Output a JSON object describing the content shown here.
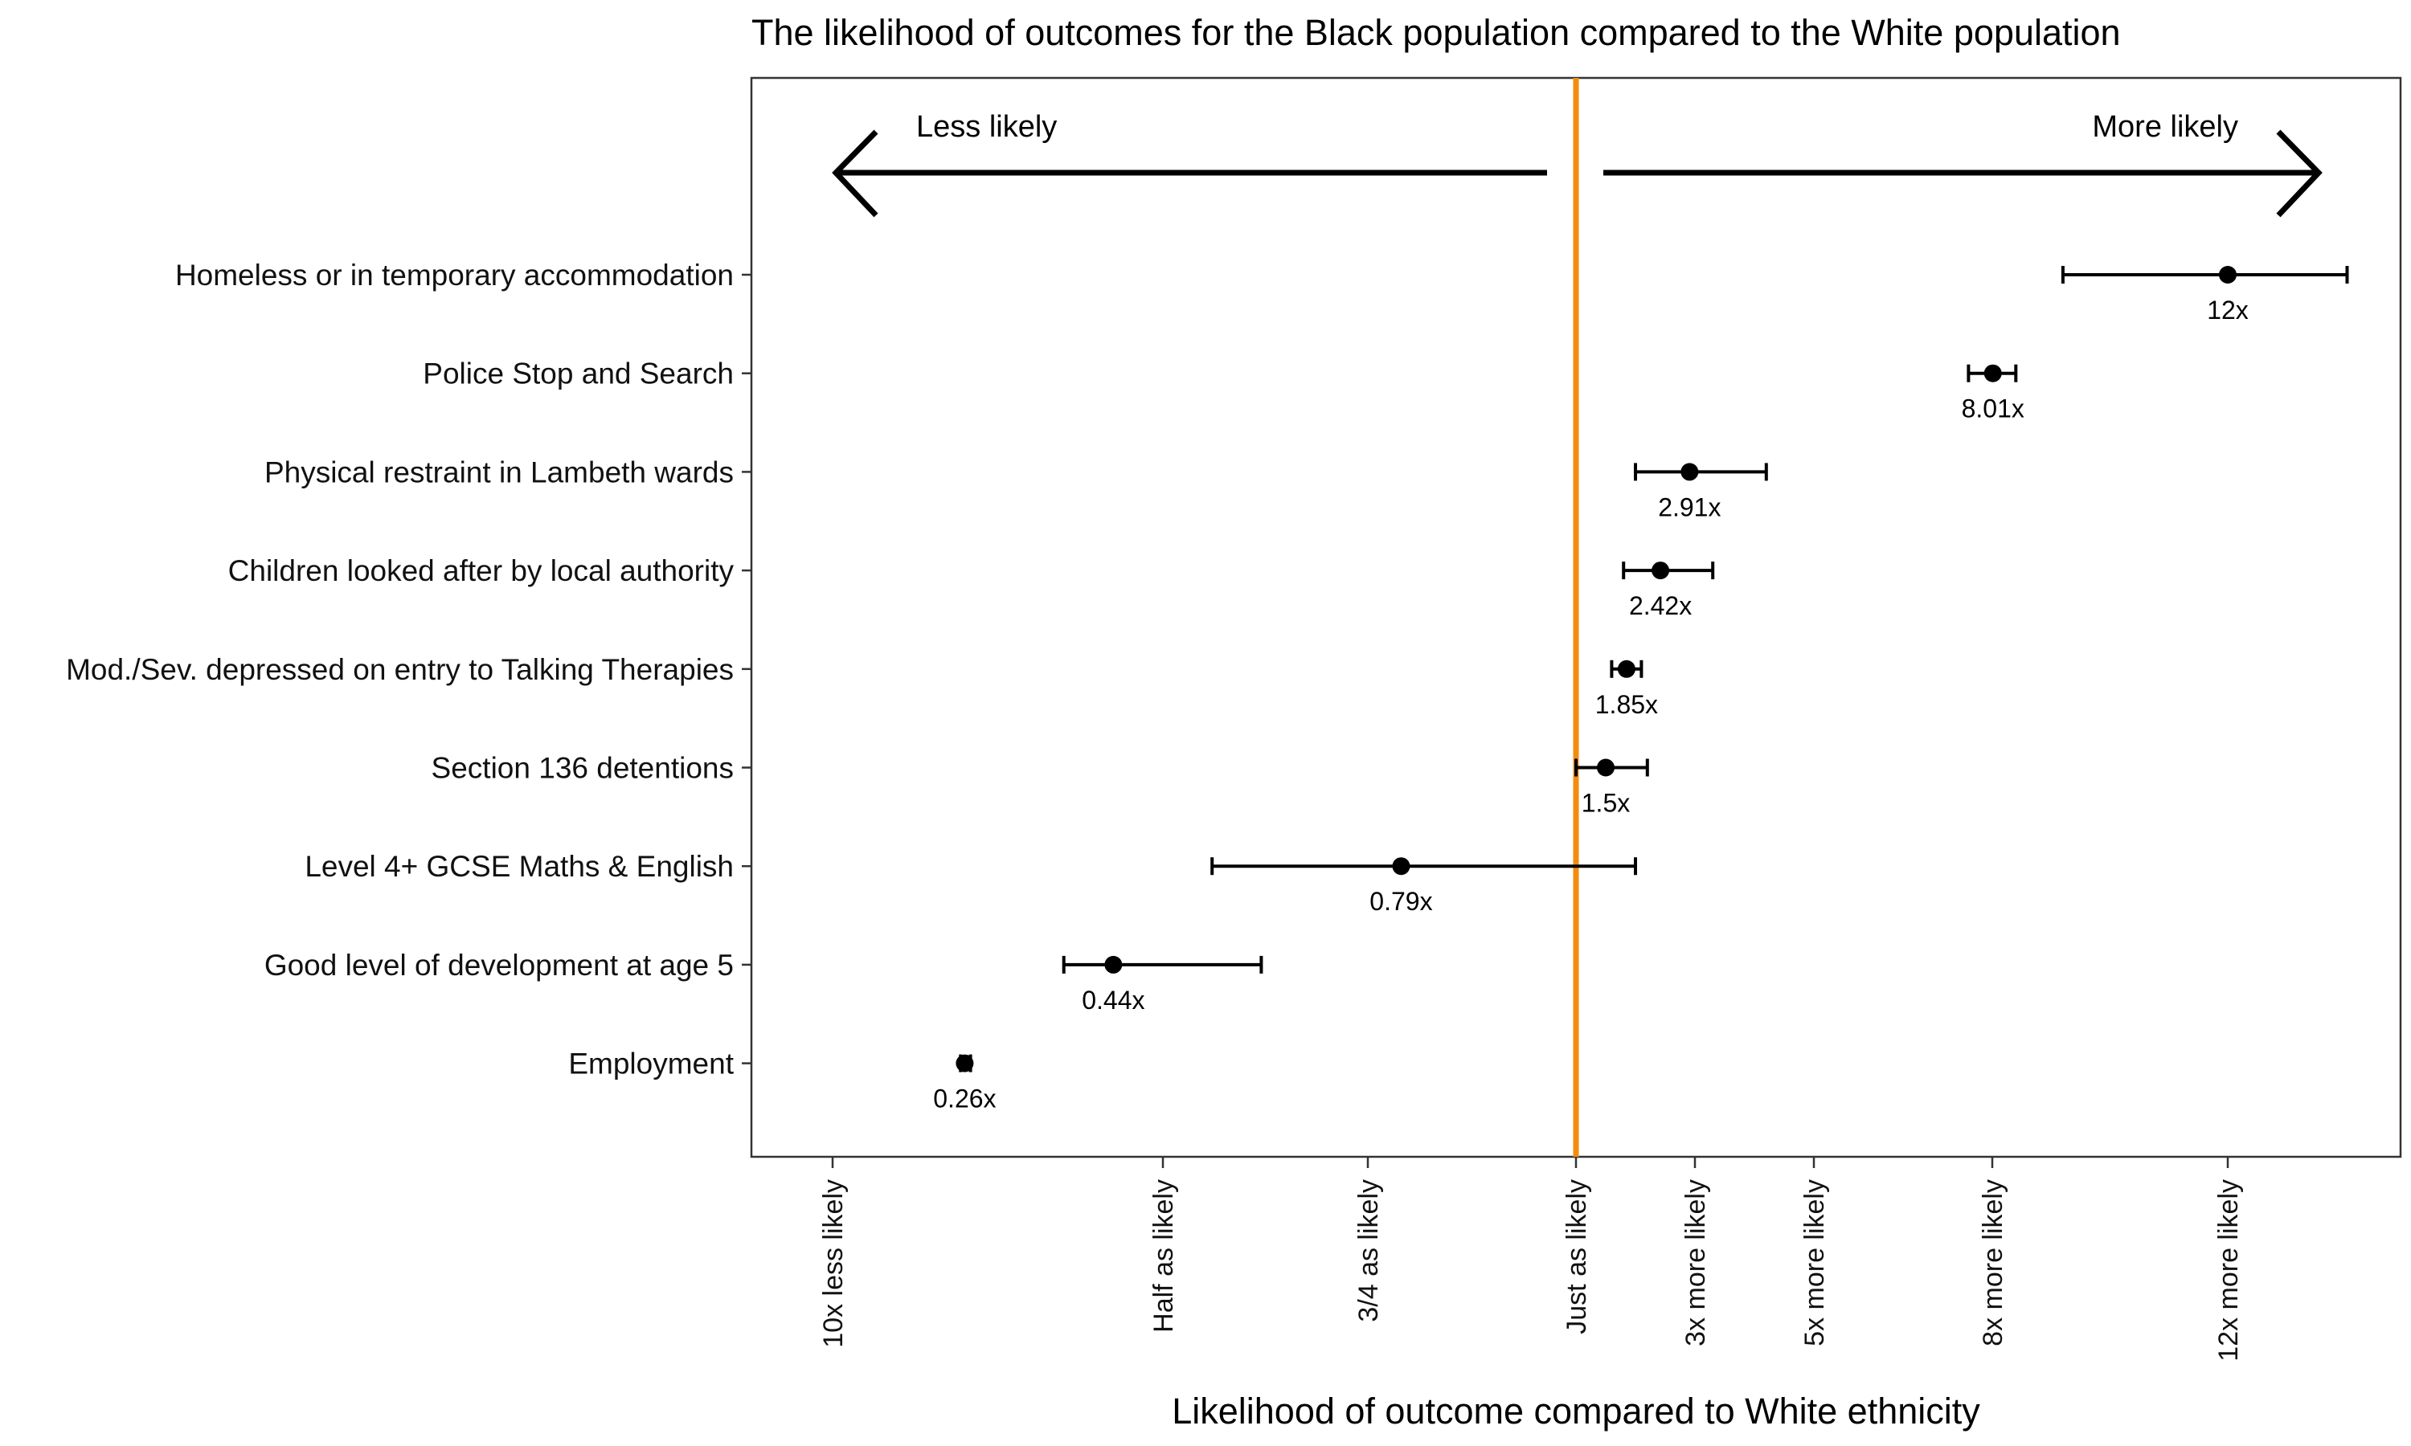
{
  "chart_data": {
    "type": "forest",
    "title": "The likelihood of outcomes for the Black population compared to the White population",
    "xlabel": "Likelihood of outcome compared to White ethnicity",
    "reference_line": {
      "value": 1,
      "color": "#F28C0F"
    },
    "direction_labels": {
      "left": "Less likely",
      "right": "More likely"
    },
    "x_ticks": [
      {
        "value": 0.1,
        "label": "10x less likely"
      },
      {
        "value": 0.5,
        "label": "Half as likely"
      },
      {
        "value": 0.75,
        "label": "3/4 as likely"
      },
      {
        "value": 1,
        "label": "Just as likely"
      },
      {
        "value": 3,
        "label": "3x more likely"
      },
      {
        "value": 5,
        "label": "5x more likely"
      },
      {
        "value": 8,
        "label": "8x more likely"
      },
      {
        "value": 12,
        "label": "12x more likely"
      }
    ],
    "categories": [
      "Homeless or in temporary accommodation",
      "Police Stop and Search",
      "Physical restraint in Lambeth wards",
      "Children looked after by local authority",
      "Mod./Sev. depressed on entry to Talking Therapies",
      "Section 136 detentions",
      "Level 4+ GCSE Maths & English",
      "Good level of development at age 5",
      "Employment"
    ],
    "values": [
      12,
      8.01,
      2.91,
      2.42,
      1.85,
      1.5,
      0.79,
      0.44,
      0.26
    ],
    "value_labels": [
      "12x",
      "8.01x",
      "2.91x",
      "2.42x",
      "1.85x",
      "1.5x",
      "0.79x",
      "0.44x",
      "0.26x"
    ],
    "ci_low": [
      9.2,
      7.6,
      2.0,
      1.8,
      1.6,
      1.0,
      0.56,
      0.38,
      0.255
    ],
    "ci_high": [
      17.5,
      8.4,
      4.2,
      3.3,
      2.1,
      2.2,
      2.0,
      0.62,
      0.267
    ],
    "point_color": "#000000",
    "grid": false
  }
}
